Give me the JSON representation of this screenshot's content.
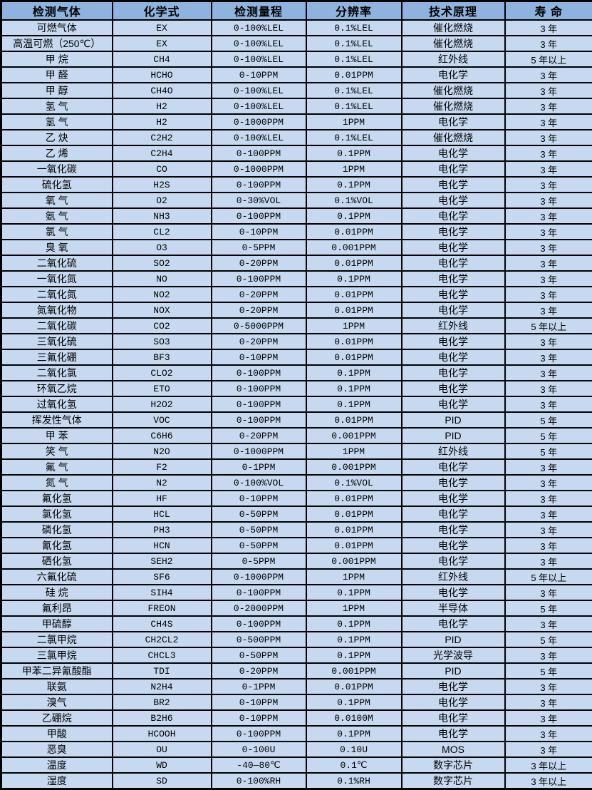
{
  "colors": {
    "header_bg": "#8FB3DF",
    "row_bg": "#C6D9F1",
    "border": "#000000",
    "text": "#000000"
  },
  "table": {
    "headers": [
      "检测气体",
      "化学式",
      "检测量程",
      "分辨率",
      "技术原理",
      "寿 命"
    ],
    "rows": [
      [
        "可燃气体",
        "EX",
        "0-100%LEL",
        "0.1%LEL",
        "催化燃烧",
        "3 年"
      ],
      [
        "高温可燃（250℃）",
        "EX",
        "0-100%LEL",
        "0.1%LEL",
        "催化燃烧",
        "3 年"
      ],
      [
        "甲 烷",
        "CH4",
        "0-100%LEL",
        "0.1%LEL",
        "红外线",
        "5 年以上"
      ],
      [
        "甲 醛",
        "HCHO",
        "0-10PPM",
        "0.01PPM",
        "电化学",
        "3 年"
      ],
      [
        "甲 醇",
        "CH4O",
        "0-100%LEL",
        "0.1%LEL",
        "催化燃烧",
        "3 年"
      ],
      [
        "氢 气",
        "H2",
        "0-100%LEL",
        "0.1%LEL",
        "催化燃烧",
        "3 年"
      ],
      [
        "氢 气",
        "H2",
        "0-1000PPM",
        "1PPM",
        "电化学",
        "3 年"
      ],
      [
        "乙 炔",
        "C2H2",
        "0-100%LEL",
        "0.1%LEL",
        "催化燃烧",
        "3 年"
      ],
      [
        "乙 烯",
        "C2H4",
        "0-100PPM",
        "0.1PPM",
        "电化学",
        "3 年"
      ],
      [
        "一氧化碳",
        "CO",
        "0-1000PPM",
        "1PPM",
        "电化学",
        "3 年"
      ],
      [
        "硫化氢",
        "H2S",
        "0-100PPM",
        "0.1PPM",
        "电化学",
        "3 年"
      ],
      [
        "氧 气",
        "O2",
        "0-30%VOL",
        "0.1%VOL",
        "电化学",
        "3 年"
      ],
      [
        "氨 气",
        "NH3",
        "0-100PPM",
        "0.1PPM",
        "电化学",
        "3 年"
      ],
      [
        "氯 气",
        "CL2",
        "0-10PPM",
        "0.01PPM",
        "电化学",
        "3 年"
      ],
      [
        "臭 氧",
        "O3",
        "0-5PPM",
        "0.001PPM",
        "电化学",
        "3 年"
      ],
      [
        "二氧化硫",
        "SO2",
        "0-20PPM",
        "0.01PPM",
        "电化学",
        "3 年"
      ],
      [
        "一氧化氮",
        "NO",
        "0-100PPM",
        "0.1PPM",
        "电化学",
        "3 年"
      ],
      [
        "二氧化氮",
        "NO2",
        "0-20PPM",
        "0.01PPM",
        "电化学",
        "3 年"
      ],
      [
        "氮氧化物",
        "NOX",
        "0-20PPM",
        "0.01PPM",
        "电化学",
        "3 年"
      ],
      [
        "二氧化碳",
        "CO2",
        "0-5000PPM",
        "1PPM",
        "红外线",
        "5 年以上"
      ],
      [
        "三氧化硫",
        "SO3",
        "0-20PPM",
        "0.01PPM",
        "电化学",
        "3 年"
      ],
      [
        "三氟化硼",
        "BF3",
        "0-10PPM",
        "0.01PPM",
        "电化学",
        "3 年"
      ],
      [
        "二氧化氯",
        "CLO2",
        "0-100PPM",
        "0.1PPM",
        "电化学",
        "3 年"
      ],
      [
        "环氧乙烷",
        "ETO",
        "0-100PPM",
        "0.1PPM",
        "电化学",
        "3 年"
      ],
      [
        "过氧化氢",
        "H2O2",
        "0-100PPM",
        "0.1PPM",
        "电化学",
        "3 年"
      ],
      [
        "挥发性气体",
        "VOC",
        "0-100PPM",
        "0.01PPM",
        "PID",
        "5 年"
      ],
      [
        "甲 苯",
        "C6H6",
        "0-20PPM",
        "0.001PPM",
        "PID",
        "5 年"
      ],
      [
        "笑 气",
        "N2O",
        "0-1000PPM",
        "1PPM",
        "红外线",
        "5 年"
      ],
      [
        "氟 气",
        "F2",
        "0-1PPM",
        "0.001PPM",
        "电化学",
        "3 年"
      ],
      [
        "氮 气",
        "N2",
        "0-100%VOL",
        "0.1%VOL",
        "电化学",
        "3 年"
      ],
      [
        "氟化氢",
        "HF",
        "0-10PPM",
        "0.01PPM",
        "电化学",
        "3 年"
      ],
      [
        "氯化氢",
        "HCL",
        "0-50PPM",
        "0.01PPM",
        "电化学",
        "3 年"
      ],
      [
        "磷化氢",
        "PH3",
        "0-50PPM",
        "0.01PPM",
        "电化学",
        "3 年"
      ],
      [
        "氰化氢",
        "HCN",
        "0-50PPM",
        "0.01PPM",
        "电化学",
        "3 年"
      ],
      [
        "硒化氢",
        "SEH2",
        "0-5PPM",
        "0.001PPM",
        "电化学",
        "3 年"
      ],
      [
        "六氟化硫",
        "SF6",
        "0-1000PPM",
        "1PPM",
        "红外线",
        "5 年以上"
      ],
      [
        "硅 烷",
        "SIH4",
        "0-100PPM",
        "0.1PPM",
        "电化学",
        "3 年"
      ],
      [
        "氟利昂",
        "FREON",
        "0-2000PPM",
        "1PPM",
        "半导体",
        "5 年"
      ],
      [
        "甲硫醇",
        "CH4S",
        "0-100PPM",
        "0.1PPM",
        "电化学",
        "3 年"
      ],
      [
        "二氯甲烷",
        "CH2CL2",
        "0-500PPM",
        "0.1PPM",
        "PID",
        "5 年"
      ],
      [
        "三氯甲烷",
        "CHCL3",
        "0-50PPM",
        "0.1PPM",
        "光学波导",
        "3 年"
      ],
      [
        "甲苯二异氰酸酯",
        "TDI",
        "0-20PPM",
        "0.001PPM",
        "PID",
        "5 年"
      ],
      [
        "联氨",
        "N2H4",
        "0-1PPM",
        "0.01PPM",
        "电化学",
        "3 年"
      ],
      [
        "溴气",
        "BR2",
        "0-10PPM",
        "0.1PPM",
        "电化学",
        "3 年"
      ],
      [
        "乙硼烷",
        "B2H6",
        "0-10PPM",
        "0.0100M",
        "电化学",
        "3 年"
      ],
      [
        "甲酸",
        "HCOOH",
        "0-100PPM",
        "0.1PPM",
        "电化学",
        "3 年"
      ],
      [
        "恶臭",
        "OU",
        "0-100U",
        "0.10U",
        "MOS",
        "3 年"
      ],
      [
        "温度",
        "WD",
        "-40—80℃",
        "0.1℃",
        "数字芯片",
        "3 年以上"
      ],
      [
        "湿度",
        "SD",
        "0-100%RH",
        "0.1%RH",
        "数字芯片",
        "3 年以上"
      ]
    ]
  }
}
